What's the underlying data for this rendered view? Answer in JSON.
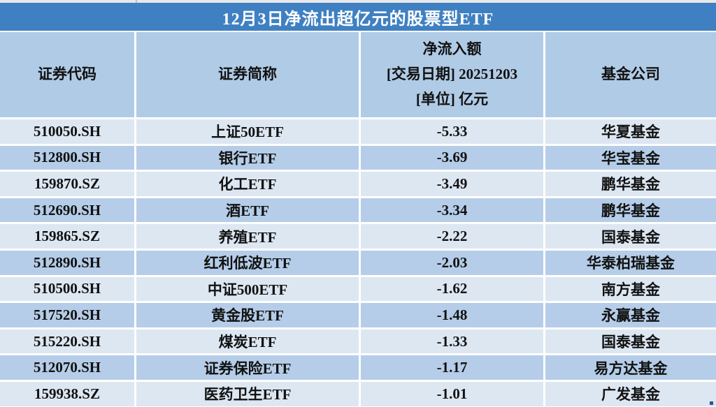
{
  "title": "12月3日净流出超亿元的股票型ETF",
  "table": {
    "headers": {
      "code": "证券代码",
      "name": "证券简称",
      "value_lines": [
        "净流入额",
        "[交易日期] 20251203",
        "[单位] 亿元"
      ],
      "company": "基金公司"
    },
    "rows": [
      {
        "code": "510050.SH",
        "name": "上证50ETF",
        "value": "-5.33",
        "company": "华夏基金"
      },
      {
        "code": "512800.SH",
        "name": "银行ETF",
        "value": "-3.69",
        "company": "华宝基金"
      },
      {
        "code": "159870.SZ",
        "name": "化工ETF",
        "value": "-3.49",
        "company": "鹏华基金"
      },
      {
        "code": "512690.SH",
        "name": "酒ETF",
        "value": "-3.34",
        "company": "鹏华基金"
      },
      {
        "code": "159865.SZ",
        "name": "养殖ETF",
        "value": "-2.22",
        "company": "国泰基金"
      },
      {
        "code": "512890.SH",
        "name": "红利低波ETF",
        "value": "-2.03",
        "company": "华泰柏瑞基金"
      },
      {
        "code": "510500.SH",
        "name": "中证500ETF",
        "value": "-1.62",
        "company": "南方基金"
      },
      {
        "code": "517520.SH",
        "name": "黄金股ETF",
        "value": "-1.48",
        "company": "永赢基金"
      },
      {
        "code": "515220.SH",
        "name": "煤炭ETF",
        "value": "-1.33",
        "company": "国泰基金"
      },
      {
        "code": "512070.SH",
        "name": "证券保险ETF",
        "value": "-1.17",
        "company": "易方达基金"
      },
      {
        "code": "159938.SZ",
        "name": "医药卫生ETF",
        "value": "-1.01",
        "company": "广发基金"
      }
    ]
  },
  "colors": {
    "title_bg": "#3f80c2",
    "header_bg": "#b0cbe6",
    "row_light_bg": "#dde7f2",
    "row_dark_bg": "#b5cde8",
    "title_text": "#ffffff",
    "cell_text": "#111111",
    "corner_mark": "#2f5496"
  }
}
